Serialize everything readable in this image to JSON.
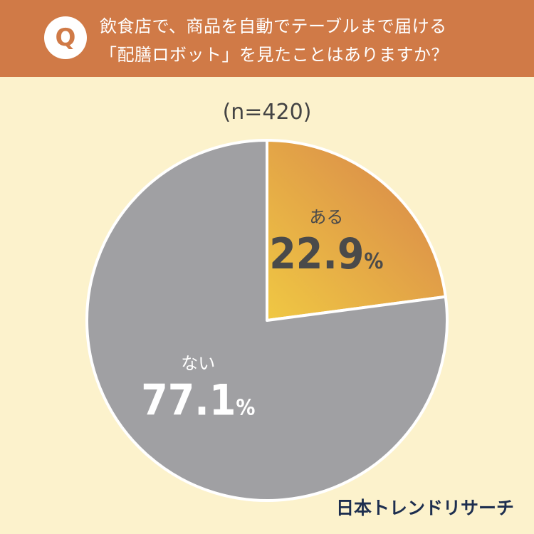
{
  "header": {
    "badge": "Q",
    "question_line1": "飲食店で、商品を自動でテーブルまで届ける",
    "question_line2": "「配膳ロボット」を見たことはありますか？"
  },
  "sample_label": "(n=420)",
  "brand": "日本トレンドリサーチ",
  "colors": {
    "header": "#d07a47",
    "background": "#fcf2cc",
    "slice_yes_start": "#f0c843",
    "slice_yes_end": "#d6814b",
    "slice_no": "#a0a0a3"
  },
  "chart_data": {
    "type": "pie",
    "categories": [
      "ある",
      "ない"
    ],
    "values": [
      22.9,
      77.1
    ],
    "value_labels": [
      "22.9",
      "77.1"
    ],
    "unit": "%"
  }
}
